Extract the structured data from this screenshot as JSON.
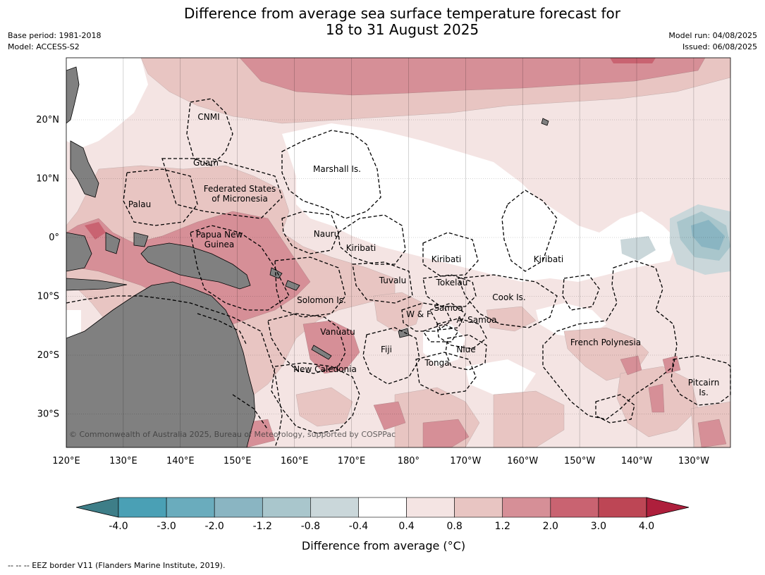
{
  "title_line1": "Difference from average sea surface temperature forecast for",
  "title_line2": "18 to 31 August 2025",
  "meta_left": [
    "Base period: 1981-2018",
    "Model: ACCESS-S2"
  ],
  "meta_right": [
    "Model run: 04/08/2025",
    "Issued: 06/08/2025"
  ],
  "copyright": "© Commonwealth of Australia 2025, Bureau of Meteorology, supported by COSPPac",
  "footnote": "--  --  -- EEZ border V11 (Flanders Marine Institute, 2019).",
  "axes": {
    "lon_labels": [
      "120°E",
      "130°E",
      "140°E",
      "150°E",
      "160°E",
      "170°E",
      "180°",
      "170°W",
      "160°W",
      "150°W",
      "140°W",
      "130°W"
    ],
    "lat_labels": [
      "20°N",
      "10°N",
      "0°",
      "10°S",
      "20°S",
      "30°S"
    ]
  },
  "regions": [
    {
      "name": "CNMI"
    },
    {
      "name": "Guam"
    },
    {
      "name": "Marshall Is."
    },
    {
      "name": "Federated States of Micronesia"
    },
    {
      "name": "Palau"
    },
    {
      "name": "Nauru"
    },
    {
      "name": "Papua New Guinea"
    },
    {
      "name": "Kiribati"
    },
    {
      "name": "Kiribati"
    },
    {
      "name": "Kiribati"
    },
    {
      "name": "Tuvalu"
    },
    {
      "name": "Tokelau"
    },
    {
      "name": "Cook Is."
    },
    {
      "name": "Solomon Is."
    },
    {
      "name": "Samoa"
    },
    {
      "name": "W & F"
    },
    {
      "name": "A. Samoa"
    },
    {
      "name": "Vanuatu"
    },
    {
      "name": "Fiji"
    },
    {
      "name": "Niue"
    },
    {
      "name": "French Polynesia"
    },
    {
      "name": "Tonga"
    },
    {
      "name": "New Caledonia"
    },
    {
      "name": "Pitcairn Is."
    }
  ],
  "colorbar": {
    "label": "Difference from average (°C)",
    "ticks": [
      "-4.0",
      "-3.0",
      "-2.0",
      "-1.2",
      "-0.8",
      "-0.4",
      "0.4",
      "0.8",
      "1.2",
      "2.0",
      "3.0",
      "4.0"
    ],
    "colors": [
      "#4aa0b5",
      "#6aacbd",
      "#8ab5c2",
      "#a9c6cc",
      "#cad7da",
      "#ffffff",
      "#f4e4e3",
      "#e8c5c2",
      "#d68f97",
      "#c96371",
      "#bd4655"
    ],
    "under_color": "#3e7e88",
    "over_color": "#ae1f3c"
  },
  "colors": {
    "land": "#808080",
    "warm_light": "#f4e4e3",
    "warm_mid": "#e8c5c2",
    "warm_strong": "#d68f97",
    "warm_stronger": "#c96371",
    "cool_light": "#cad7da",
    "cool_mid": "#a9c6cc",
    "cool_strong": "#8ab5c2"
  }
}
